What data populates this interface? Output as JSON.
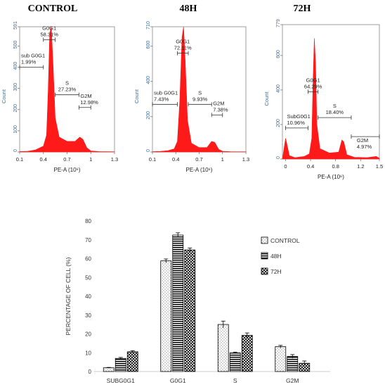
{
  "colors": {
    "histogram_fill": "#ff1a1a",
    "axis_label": "#3b6e9c",
    "bar_outline": "#000000"
  },
  "histograms": [
    {
      "title": "CONTROL",
      "ylim": [
        0,
        591
      ],
      "xlim": [
        0.1,
        1.3
      ],
      "y_ticks": [
        "0",
        "100",
        "200",
        "300",
        "400",
        "500",
        "591"
      ],
      "x_ticks": [
        "0.1",
        "0.4",
        "0.7",
        "1",
        "1.3"
      ],
      "x_tick_values": [
        0.1,
        0.4,
        0.7,
        1.0,
        1.3
      ],
      "y_tick_values": [
        0,
        100,
        200,
        300,
        400,
        500,
        591
      ],
      "ylabel": "Count",
      "xlabel": "PE-A (10⁶)",
      "peaks": [
        [
          0.1,
          2
        ],
        [
          0.2,
          3
        ],
        [
          0.3,
          10
        ],
        [
          0.4,
          28
        ],
        [
          0.44,
          80
        ],
        [
          0.46,
          280
        ],
        [
          0.48,
          560
        ],
        [
          0.5,
          591
        ],
        [
          0.52,
          430
        ],
        [
          0.55,
          160
        ],
        [
          0.6,
          70
        ],
        [
          0.7,
          50
        ],
        [
          0.8,
          50
        ],
        [
          0.86,
          70
        ],
        [
          0.9,
          60
        ],
        [
          0.95,
          20
        ],
        [
          1.0,
          5
        ],
        [
          1.1,
          2
        ],
        [
          1.3,
          1
        ]
      ],
      "gates": [
        {
          "name": "sub G0G1",
          "value": "1.99%",
          "from": 0.1,
          "to": 0.4,
          "level": 400
        },
        {
          "name": "G0G1",
          "value": "58.31%",
          "from": 0.4,
          "to": 0.55,
          "level": 530
        },
        {
          "name": "S",
          "value": "27.23%",
          "from": 0.55,
          "to": 0.85,
          "level": 270
        },
        {
          "name": "G2M",
          "value": "12.98%",
          "from": 0.85,
          "to": 1.0,
          "level": 210
        }
      ]
    },
    {
      "title": "48H",
      "ylim": [
        0,
        710
      ],
      "xlim": [
        0.1,
        1.3
      ],
      "y_ticks": [
        "0",
        "200",
        "400",
        "600",
        "710"
      ],
      "y_tick_values": [
        0,
        200,
        400,
        600,
        710
      ],
      "x_ticks": [
        "0.1",
        "0.4",
        "0.7",
        "1",
        "1.3"
      ],
      "x_tick_values": [
        0.1,
        0.4,
        0.7,
        1.0,
        1.3
      ],
      "ylabel": "Count",
      "xlabel": "PE-A (10⁶)",
      "peaks": [
        [
          0.1,
          2
        ],
        [
          0.2,
          3
        ],
        [
          0.3,
          8
        ],
        [
          0.38,
          18
        ],
        [
          0.42,
          60
        ],
        [
          0.45,
          280
        ],
        [
          0.48,
          650
        ],
        [
          0.5,
          710
        ],
        [
          0.52,
          520
        ],
        [
          0.55,
          180
        ],
        [
          0.6,
          50
        ],
        [
          0.7,
          25
        ],
        [
          0.8,
          25
        ],
        [
          0.86,
          60
        ],
        [
          0.9,
          55
        ],
        [
          0.95,
          15
        ],
        [
          1.0,
          4
        ],
        [
          1.1,
          2
        ],
        [
          1.3,
          1
        ]
      ],
      "gates": [
        {
          "name": "sub G0G1",
          "value": "7.43%",
          "from": 0.1,
          "to": 0.42,
          "level": 270
        },
        {
          "name": "G0G1",
          "value": "72.11%",
          "from": 0.42,
          "to": 0.56,
          "level": 560
        },
        {
          "name": "S",
          "value": "9.93%",
          "from": 0.56,
          "to": 0.86,
          "level": 270
        },
        {
          "name": "G2M",
          "value": "7.38%",
          "from": 0.86,
          "to": 1.0,
          "level": 210
        }
      ]
    },
    {
      "title": "72H",
      "ylim": [
        0,
        779
      ],
      "xlim": [
        -0.05,
        1.5
      ],
      "y_ticks": [
        "0",
        "200",
        "400",
        "600",
        "779"
      ],
      "y_tick_values": [
        0,
        200,
        400,
        600,
        779
      ],
      "x_ticks": [
        "0",
        "0.4",
        "0.8",
        "1.2",
        "1.5"
      ],
      "x_tick_values": [
        0,
        0.4,
        0.8,
        1.2,
        1.5
      ],
      "ylabel": "Count",
      "xlabel": "PE-A (10⁶)",
      "peaks": [
        [
          -0.05,
          0
        ],
        [
          0.0,
          120
        ],
        [
          0.02,
          90
        ],
        [
          0.06,
          20
        ],
        [
          0.15,
          8
        ],
        [
          0.3,
          15
        ],
        [
          0.38,
          30
        ],
        [
          0.42,
          120
        ],
        [
          0.44,
          450
        ],
        [
          0.46,
          700
        ],
        [
          0.48,
          560
        ],
        [
          0.5,
          200
        ],
        [
          0.55,
          60
        ],
        [
          0.7,
          35
        ],
        [
          0.85,
          40
        ],
        [
          0.9,
          110
        ],
        [
          0.93,
          100
        ],
        [
          0.98,
          25
        ],
        [
          1.1,
          10
        ],
        [
          1.3,
          8
        ],
        [
          1.45,
          15
        ],
        [
          1.5,
          5
        ]
      ],
      "gates": [
        {
          "name": "SubG0G1",
          "value": "10.96%",
          "from": 0.0,
          "to": 0.36,
          "level": 180
        },
        {
          "name": "G0G1",
          "value": "64.29%",
          "from": 0.36,
          "to": 0.52,
          "level": 390
        },
        {
          "name": "S",
          "value": "18.40%",
          "from": 0.52,
          "to": 1.05,
          "level": 240
        },
        {
          "name": "G2M",
          "value": "4.97%",
          "from": 1.05,
          "to": 1.5,
          "level": 130
        }
      ]
    }
  ],
  "chart_data": {
    "type": "bar",
    "categories": [
      "SUBG0G1",
      "G0G1",
      "S",
      "G2M"
    ],
    "series": [
      {
        "name": "CONTROL",
        "values": [
          1.99,
          58.8,
          25.0,
          13.2
        ],
        "errors": [
          0.2,
          1.0,
          1.8,
          0.7
        ]
      },
      {
        "name": "48H",
        "values": [
          7.0,
          72.5,
          9.9,
          8.0
        ],
        "errors": [
          0.5,
          1.2,
          0.4,
          1.0
        ]
      },
      {
        "name": "72H",
        "values": [
          10.5,
          64.6,
          19.2,
          4.4
        ],
        "errors": [
          0.6,
          1.0,
          1.3,
          1.2
        ]
      }
    ],
    "ylabel": "PERCENTAGE OF CELL (%)",
    "ylim": [
      0,
      80
    ],
    "y_ticks": [
      0,
      10,
      20,
      30,
      40,
      50,
      60,
      70,
      80
    ],
    "legend_position": "right",
    "grid": false
  }
}
